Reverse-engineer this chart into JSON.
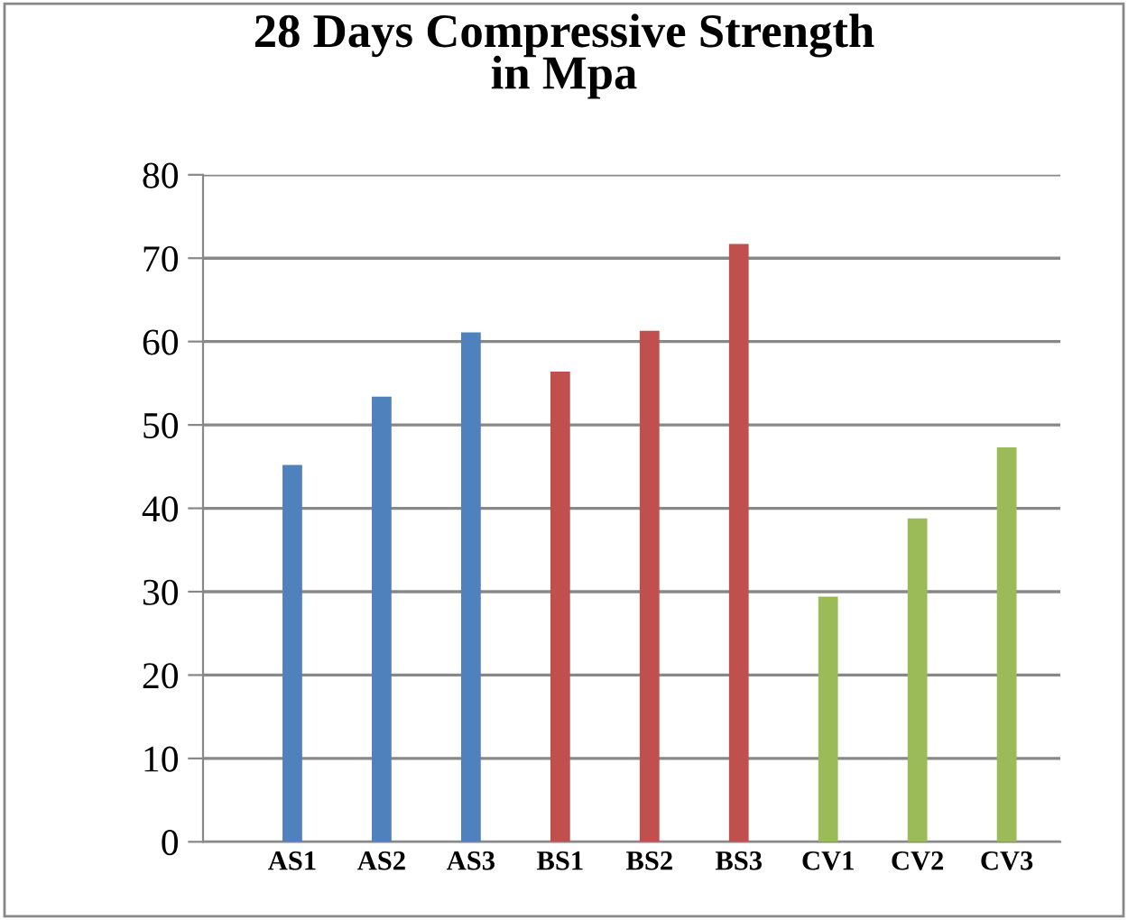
{
  "chart_data": {
    "type": "bar",
    "title": "28 Days Compressive Strength\nin Mpa",
    "categories": [
      "AS1",
      "AS2",
      "AS3",
      "BS1",
      "BS2",
      "BS3",
      "CV1",
      "CV2",
      "CV3"
    ],
    "values": [
      45.2,
      53.4,
      61.1,
      56.4,
      61.3,
      71.7,
      29.4,
      38.8,
      47.3
    ],
    "colors": [
      "#4f81bd",
      "#4f81bd",
      "#4f81bd",
      "#c0504d",
      "#c0504d",
      "#c0504d",
      "#9bbb59",
      "#9bbb59",
      "#9bbb59"
    ],
    "ylim": [
      0,
      80
    ],
    "yticks": [
      0,
      10,
      20,
      30,
      40,
      50,
      60,
      70,
      80
    ],
    "grid": "y",
    "legend": false
  }
}
